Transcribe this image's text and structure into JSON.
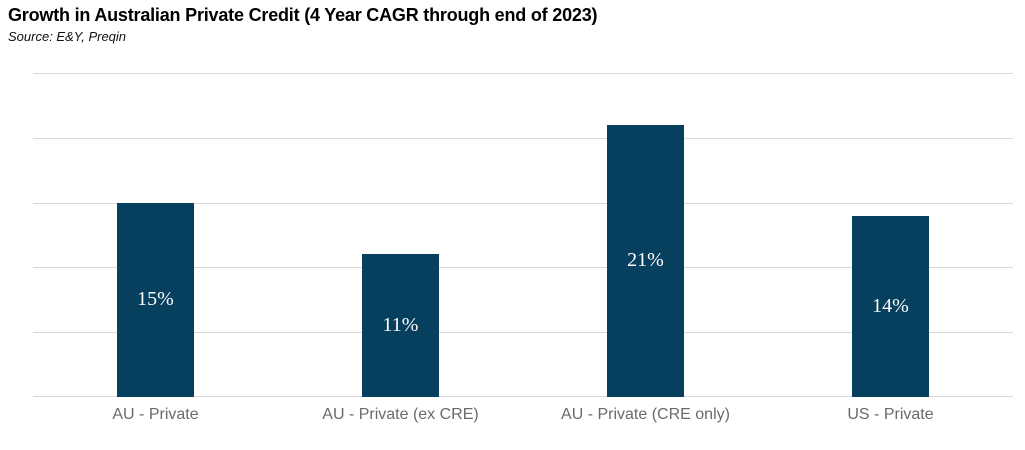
{
  "title": "Growth in Australian Private Credit (4 Year CAGR through end of 2023)",
  "source": "Source: E&Y, Preqin",
  "colors": {
    "bar": "#073F5E",
    "gridline": "#D9D9D9",
    "axis_label": "#6A6A6A",
    "data_label": "#FFFFFF",
    "title": "#000000",
    "background": "#FFFFFF"
  },
  "chart_data": {
    "type": "bar",
    "title": "Growth in Australian Private Credit (4 Year CAGR through end of 2023)",
    "subtitle": "Source: E&Y, Preqin",
    "categories": [
      "AU - Private",
      "AU - Private (ex CRE)",
      "AU - Private (CRE only)",
      "US - Private"
    ],
    "values": [
      15,
      11,
      21,
      14
    ],
    "data_labels": [
      "15%",
      "11%",
      "21%",
      "14%"
    ],
    "xlabel": "",
    "ylabel": "",
    "ylim": [
      0,
      25
    ],
    "gridline_count": 6,
    "grid": "on",
    "legend": "none",
    "y_axis_tick_labels_visible": false
  }
}
